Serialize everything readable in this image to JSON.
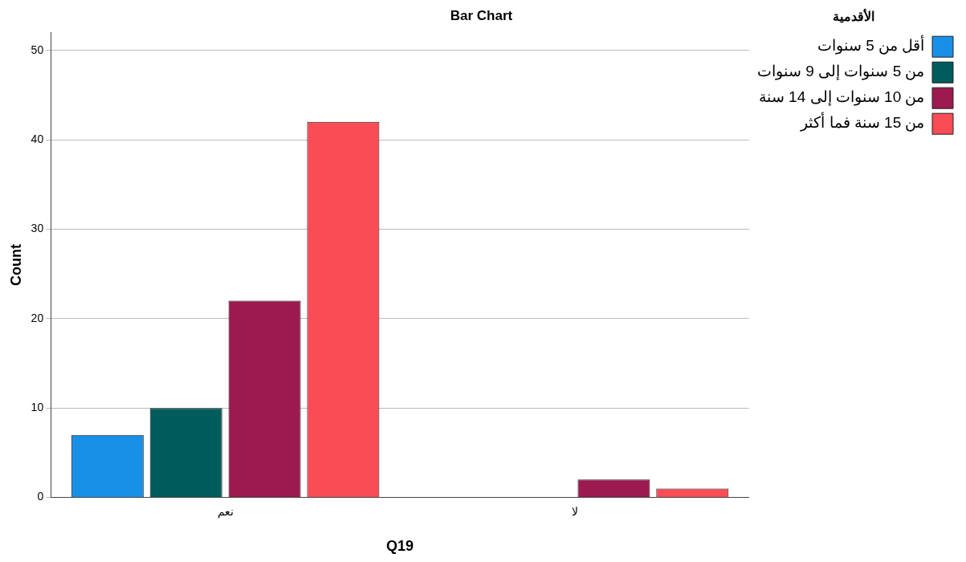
{
  "chart_data": {
    "type": "bar",
    "title": "Bar Chart",
    "xlabel": "Q19",
    "ylabel": "Count",
    "legend_title": "الأقدمية",
    "categories": [
      "نعم",
      "لا"
    ],
    "series": [
      {
        "name": "أقل من 5 سنوات",
        "color": "#1990e8",
        "values": [
          7,
          null
        ]
      },
      {
        "name": "من 5 سنوات إلى 9 سنوات",
        "color": "#005c5c",
        "values": [
          10,
          null
        ]
      },
      {
        "name": "من 10 سنوات إلى 14 سنة",
        "color": "#9c1a4f",
        "values": [
          22,
          2
        ]
      },
      {
        "name": "من 15 سنة فما أكثر",
        "color": "#f94c55",
        "values": [
          42,
          1
        ]
      }
    ],
    "ylim": [
      0,
      52
    ],
    "yticks": [
      0,
      10,
      20,
      30,
      40,
      50
    ],
    "grid": "y",
    "legend": "top right"
  }
}
